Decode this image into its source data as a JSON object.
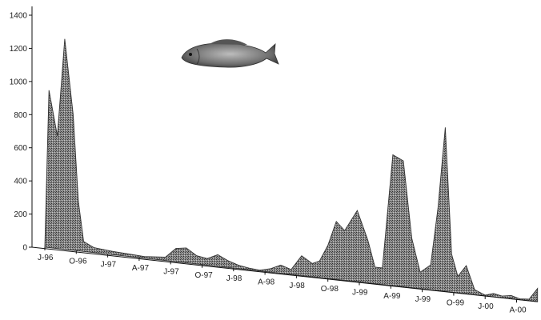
{
  "chart_data": {
    "type": "area",
    "title": "",
    "xlabel": "",
    "ylabel": "",
    "ylim": [
      0,
      1400
    ],
    "y_ticks": [
      0,
      200,
      400,
      600,
      800,
      1000,
      1200,
      1400
    ],
    "y_tick_labels": [
      "0",
      "200",
      "400",
      "600",
      "800",
      "1000",
      "1200",
      "1400"
    ],
    "x_ticks": [
      {
        "month": 0,
        "label": "J-96"
      },
      {
        "month": 3,
        "label": "O-96"
      },
      {
        "month": 6,
        "label": "J-97"
      },
      {
        "month": 9,
        "label": "A-97"
      },
      {
        "month": 12,
        "label": "J-97"
      },
      {
        "month": 15,
        "label": "O-97"
      },
      {
        "month": 18,
        "label": "J-98"
      },
      {
        "month": 21,
        "label": "A-98"
      },
      {
        "month": 24,
        "label": "J-98"
      },
      {
        "month": 27,
        "label": "O-98"
      },
      {
        "month": 30,
        "label": "J-99"
      },
      {
        "month": 33,
        "label": "A-99"
      },
      {
        "month": 36,
        "label": "J-99"
      },
      {
        "month": 39,
        "label": "O-99"
      },
      {
        "month": 42,
        "label": "J-00"
      },
      {
        "month": 45,
        "label": "A-00"
      }
    ],
    "x_range_months": [
      0,
      47
    ],
    "series": [
      {
        "points": [
          [
            0,
            0
          ],
          [
            0.4,
            950
          ],
          [
            1.2,
            680
          ],
          [
            1.9,
            1270
          ],
          [
            2.7,
            820
          ],
          [
            3.2,
            300
          ],
          [
            3.7,
            60
          ],
          [
            4.7,
            30
          ],
          [
            6.5,
            20
          ],
          [
            8,
            15
          ],
          [
            9.5,
            10
          ],
          [
            11.5,
            20
          ],
          [
            12.5,
            80
          ],
          [
            13.5,
            90
          ],
          [
            14.5,
            50
          ],
          [
            15.5,
            40
          ],
          [
            16.5,
            70
          ],
          [
            17.5,
            40
          ],
          [
            18.5,
            20
          ],
          [
            19.5,
            10
          ],
          [
            20.5,
            5
          ],
          [
            21.5,
            20
          ],
          [
            22.5,
            50
          ],
          [
            23.5,
            30
          ],
          [
            24.5,
            120
          ],
          [
            25.5,
            80
          ],
          [
            26.2,
            100
          ],
          [
            27,
            200
          ],
          [
            27.8,
            350
          ],
          [
            28.6,
            300
          ],
          [
            29.8,
            430
          ],
          [
            30.8,
            260
          ],
          [
            31.5,
            100
          ],
          [
            32.2,
            100
          ],
          [
            33.2,
            790
          ],
          [
            34.2,
            760
          ],
          [
            35,
            300
          ],
          [
            35.8,
            100
          ],
          [
            36.8,
            150
          ],
          [
            37.5,
            500
          ],
          [
            38.2,
            990
          ],
          [
            38.8,
            230
          ],
          [
            39.4,
            100
          ],
          [
            40.2,
            170
          ],
          [
            41,
            30
          ],
          [
            42,
            5
          ],
          [
            42.8,
            20
          ],
          [
            43.6,
            10
          ],
          [
            44.5,
            20
          ],
          [
            45.3,
            5
          ],
          [
            46.2,
            10
          ],
          [
            47,
            80
          ],
          [
            47,
            0
          ]
        ]
      }
    ]
  }
}
